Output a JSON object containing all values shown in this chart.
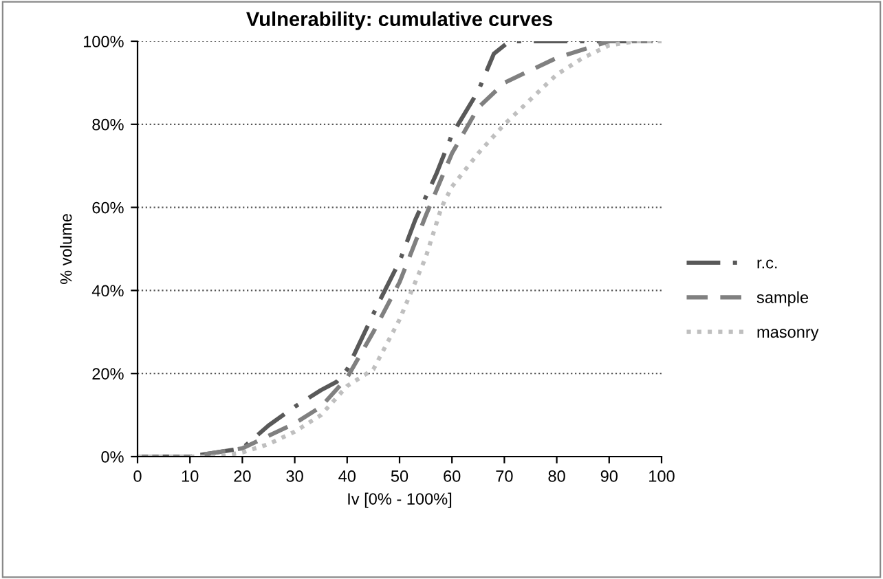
{
  "chart_data": {
    "type": "line",
    "title": "Vulnerability: cumulative curves",
    "xlabel": "Iv [0% - 100%]",
    "ylabel": "% volume",
    "xlim": [
      0,
      100
    ],
    "xticks": [
      0,
      10,
      20,
      30,
      40,
      50,
      60,
      70,
      80,
      90,
      100
    ],
    "ylim": [
      0,
      100
    ],
    "yticks": [
      {
        "value": 0,
        "label": "0%"
      },
      {
        "value": 20,
        "label": "20%"
      },
      {
        "value": 40,
        "label": "40%"
      },
      {
        "value": 60,
        "label": "60%"
      },
      {
        "value": 80,
        "label": "80%"
      },
      {
        "value": 100,
        "label": "100%"
      }
    ],
    "grid": "y",
    "legend": "right",
    "marker": "none",
    "series": [
      {
        "name": "r.c.",
        "color": "#595959",
        "line_style": "dashdot",
        "x": [
          0,
          10,
          15,
          20,
          25,
          30,
          35,
          38,
          40,
          46,
          50,
          53,
          57,
          60,
          65,
          68,
          71,
          100
        ],
        "values": [
          0,
          0,
          1,
          2,
          7.5,
          12,
          16,
          18,
          21,
          37,
          47,
          57,
          68,
          77.5,
          88,
          97,
          100,
          100
        ]
      },
      {
        "name": "sample",
        "color": "#808080",
        "line_style": "dashed",
        "x": [
          0,
          10,
          15,
          20,
          30,
          35,
          40,
          45,
          50,
          55,
          60,
          65,
          70,
          80,
          85,
          90,
          100
        ],
        "values": [
          0,
          0,
          1,
          2,
          8,
          12,
          19,
          30,
          42,
          58,
          73,
          84,
          90,
          96,
          98,
          100,
          100
        ]
      },
      {
        "name": "masonry",
        "color": "#bfbfbf",
        "line_style": "dotted",
        "x": [
          0,
          15,
          20,
          25,
          30,
          35,
          40,
          45,
          50,
          55,
          58,
          60,
          65,
          70,
          75,
          80,
          85,
          90,
          95,
          100
        ],
        "values": [
          0,
          0,
          1,
          3,
          6,
          10,
          17,
          21,
          33,
          48,
          60,
          65,
          73,
          80,
          86,
          92,
          96,
          99,
          100,
          100
        ]
      }
    ]
  }
}
